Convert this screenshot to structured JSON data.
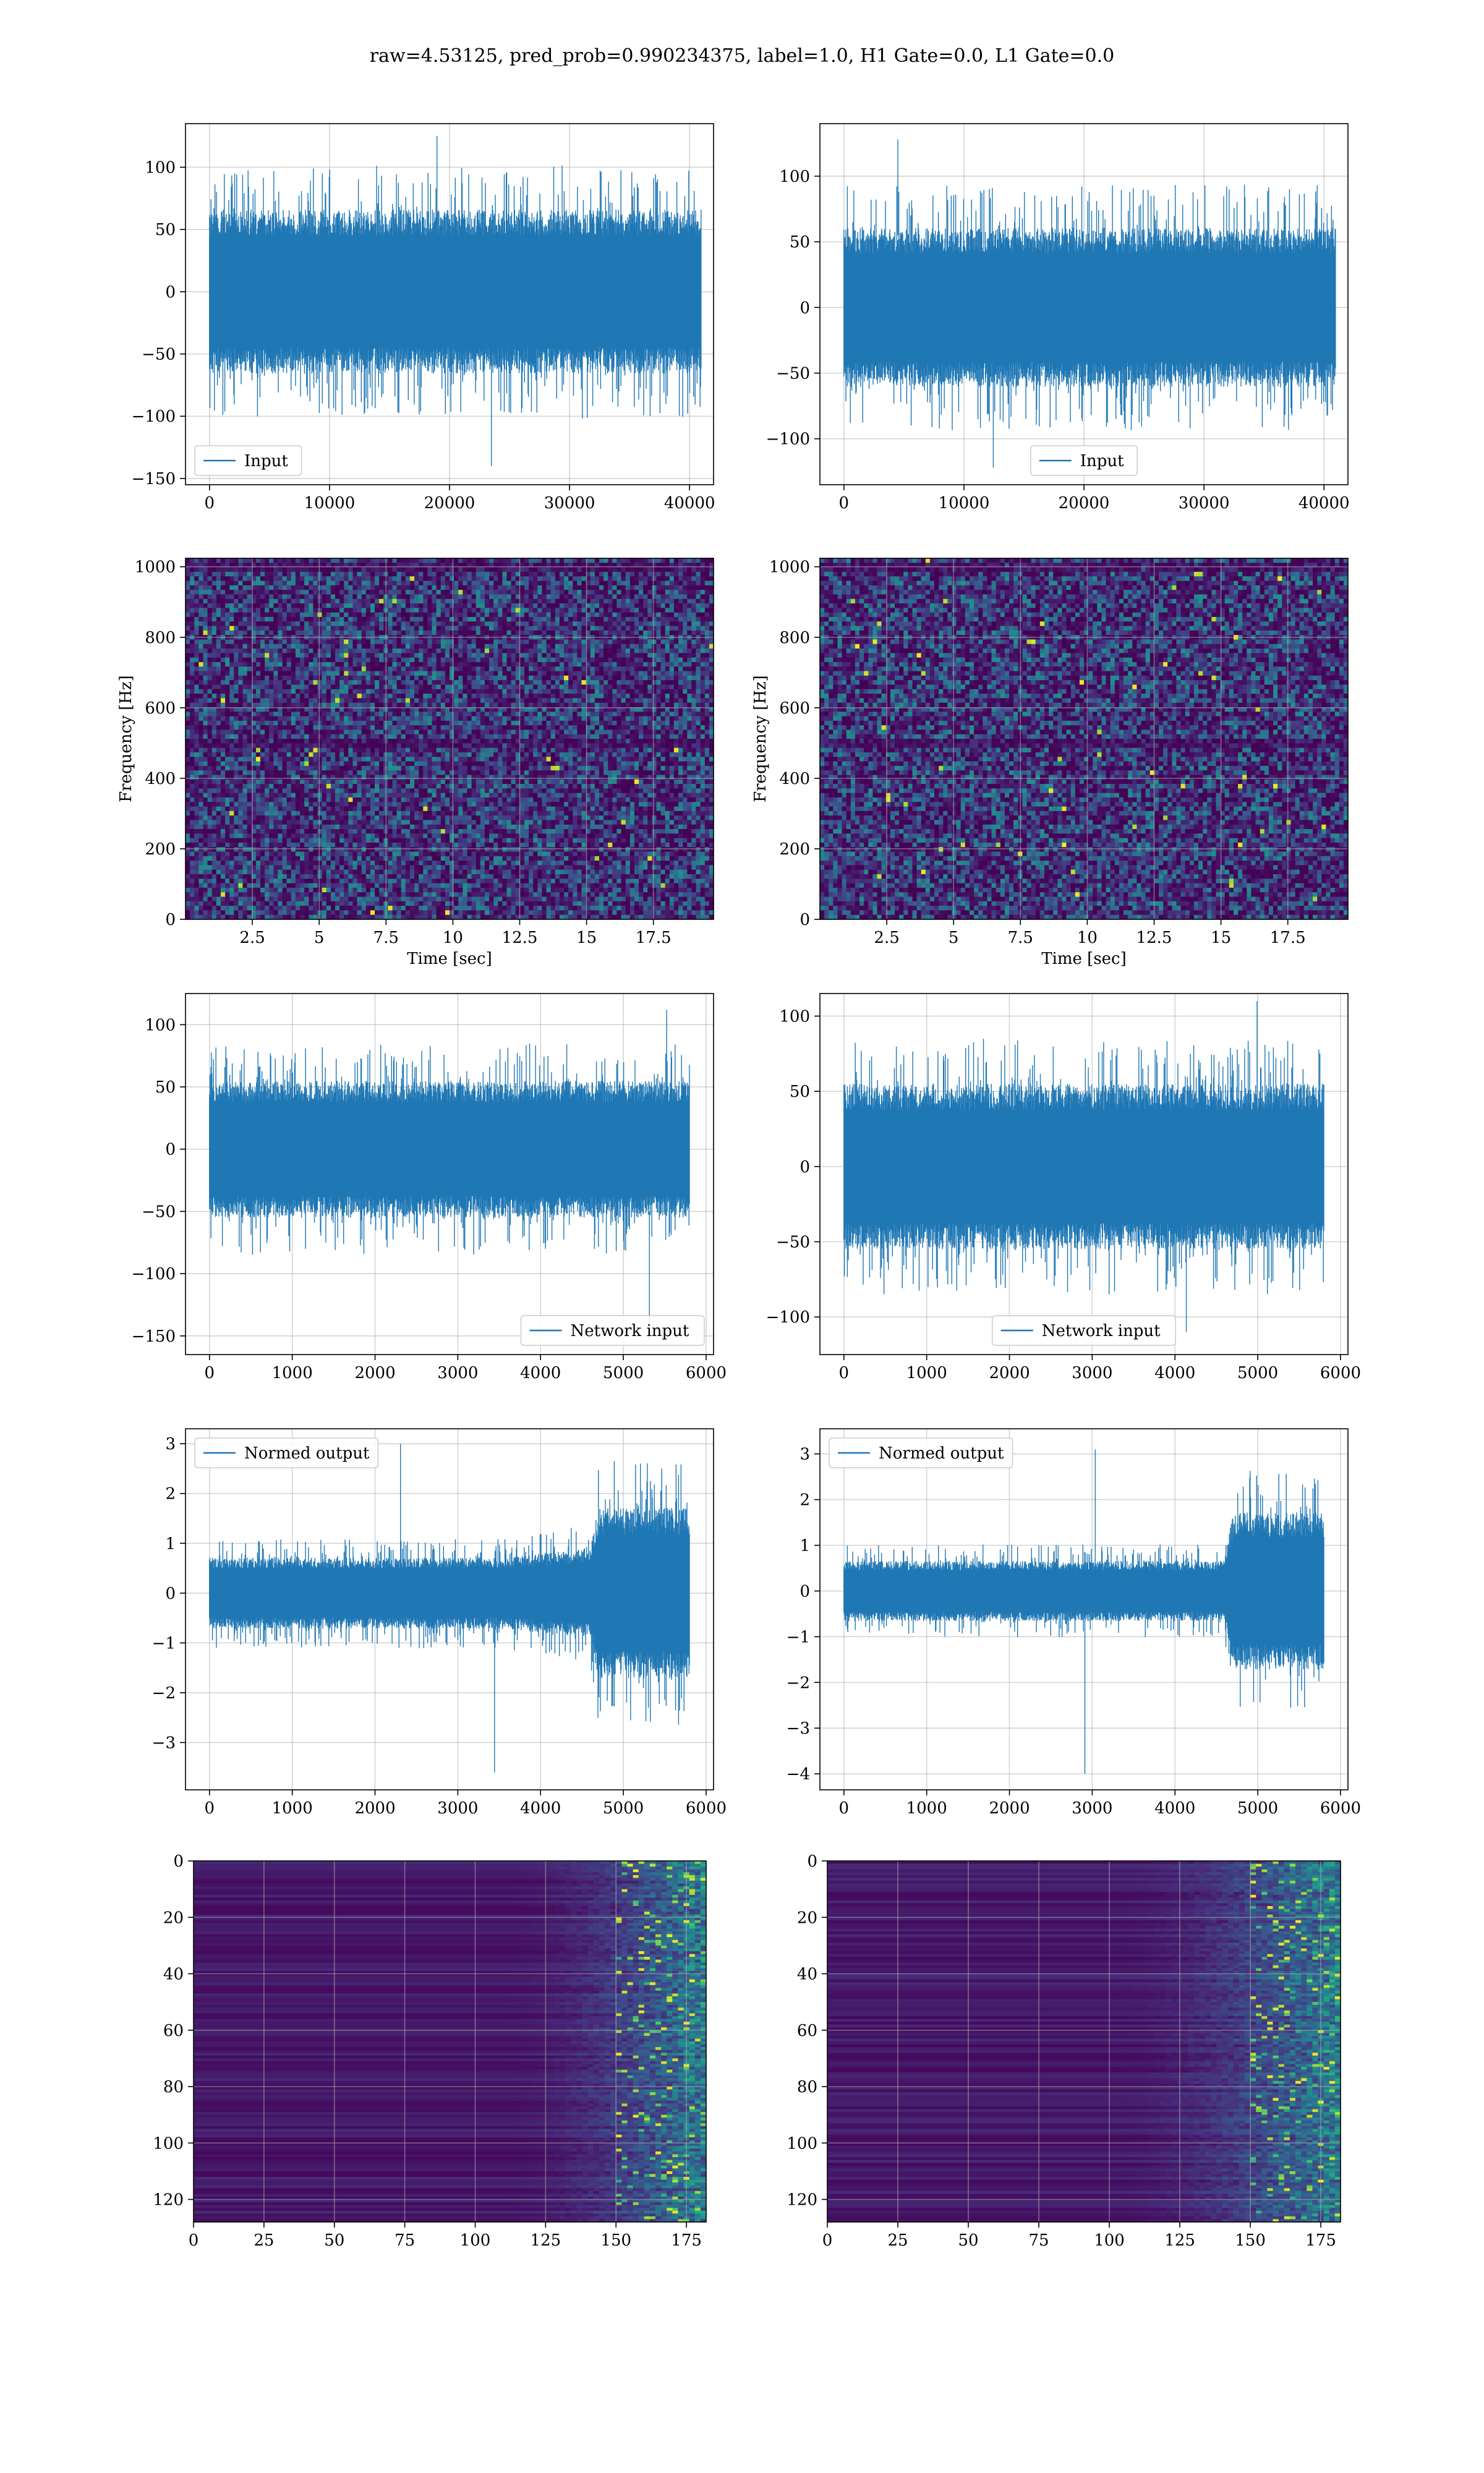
{
  "figure": {
    "suptitle": "raw=4.53125, pred_prob=0.990234375, label=1.0, H1 Gate=0.0, L1 Gate=0.0"
  },
  "colors": {
    "line": "#1f77b4",
    "viridis_low": "#440154",
    "viridis_mid": "#21918c",
    "viridis_high": "#fde725",
    "grid": "#b0b0b0"
  },
  "chart_data": [
    {
      "id": "h1-input",
      "type": "line",
      "legend": "Input",
      "legend_loc": "lower-left",
      "xlim": [
        -2000,
        42000
      ],
      "ylim": [
        -155,
        135
      ],
      "xticks": [
        0,
        10000,
        20000,
        30000,
        40000
      ],
      "yticks": [
        -150,
        -100,
        -50,
        0,
        50,
        100
      ],
      "xlabel": "",
      "ylabel": "",
      "grid": true,
      "signal": {
        "n": 40960,
        "core_amp": 60,
        "min": -140,
        "max": 125,
        "envelope": [
          {
            "x": 0,
            "mult": 1.0
          },
          {
            "x": 40959,
            "mult": 1.0
          }
        ]
      }
    },
    {
      "id": "l1-input",
      "type": "line",
      "legend": "Input",
      "legend_loc": "lower-center",
      "xlim": [
        -2000,
        42000
      ],
      "ylim": [
        -135,
        140
      ],
      "xticks": [
        0,
        10000,
        20000,
        30000,
        40000
      ],
      "yticks": [
        -100,
        -50,
        0,
        50,
        100
      ],
      "xlabel": "",
      "ylabel": "",
      "grid": true,
      "signal": {
        "n": 40960,
        "core_amp": 55,
        "min": -122,
        "max": 128,
        "envelope": [
          {
            "x": 0,
            "mult": 1.0
          },
          {
            "x": 40959,
            "mult": 1.0
          }
        ]
      }
    },
    {
      "id": "h1-spectrogram",
      "type": "heatmap",
      "xlim": [
        0,
        19.75
      ],
      "ylim": [
        0,
        1024
      ],
      "xticks": [
        2.5,
        5.0,
        7.5,
        10.0,
        12.5,
        15.0,
        17.5
      ],
      "yticks": [
        0,
        200,
        400,
        600,
        800,
        1000
      ],
      "xlabel": "Time [sec]",
      "ylabel": "Frequency [Hz]",
      "grid": true,
      "colormap": "viridis",
      "dark_bands_hz": [
        500,
        1000
      ]
    },
    {
      "id": "l1-spectrogram",
      "type": "heatmap",
      "xlim": [
        0,
        19.75
      ],
      "ylim": [
        0,
        1024
      ],
      "xticks": [
        2.5,
        5.0,
        7.5,
        10.0,
        12.5,
        15.0,
        17.5
      ],
      "yticks": [
        0,
        200,
        400,
        600,
        800,
        1000
      ],
      "xlabel": "Time [sec]",
      "ylabel": "Frequency [Hz]",
      "grid": true,
      "colormap": "viridis",
      "dark_bands_hz": [
        500,
        1000
      ]
    },
    {
      "id": "h1-network-input",
      "type": "line",
      "legend": "Network input",
      "legend_loc": "lower-right",
      "xlim": [
        -290,
        6090
      ],
      "ylim": [
        -165,
        125
      ],
      "xticks": [
        0,
        1000,
        2000,
        3000,
        4000,
        5000,
        6000
      ],
      "yticks": [
        -150,
        -100,
        -50,
        0,
        50,
        100
      ],
      "xlabel": "",
      "ylabel": "",
      "grid": true,
      "signal": {
        "n": 5800,
        "core_amp": 50,
        "min": -152,
        "max": 112,
        "envelope": [
          {
            "x": 0,
            "mult": 1.0
          },
          {
            "x": 5799,
            "mult": 1.0
          }
        ]
      }
    },
    {
      "id": "l1-network-input",
      "type": "line",
      "legend": "Network input",
      "legend_loc": "lower-center",
      "xlim": [
        -290,
        6090
      ],
      "ylim": [
        -125,
        115
      ],
      "xticks": [
        0,
        1000,
        2000,
        3000,
        4000,
        5000,
        6000
      ],
      "yticks": [
        -100,
        -50,
        0,
        50,
        100
      ],
      "xlabel": "",
      "ylabel": "",
      "grid": true,
      "signal": {
        "n": 5800,
        "core_amp": 50,
        "min": -110,
        "max": 110,
        "envelope": [
          {
            "x": 0,
            "mult": 1.0
          },
          {
            "x": 5799,
            "mult": 1.0
          }
        ]
      }
    },
    {
      "id": "h1-normed-output",
      "type": "line",
      "legend": "Normed output",
      "legend_loc": "upper-left",
      "xlim": [
        -290,
        6090
      ],
      "ylim": [
        -3.95,
        3.3
      ],
      "xticks": [
        0,
        1000,
        2000,
        3000,
        4000,
        5000,
        6000
      ],
      "yticks": [
        -3,
        -2,
        -1,
        0,
        1,
        2,
        3
      ],
      "xlabel": "",
      "ylabel": "",
      "grid": true,
      "signal": {
        "n": 5800,
        "core_amp": 0.65,
        "min": -3.6,
        "max": 3.0,
        "envelope": [
          {
            "x": 0,
            "mult": 1.0
          },
          {
            "x": 3500,
            "mult": 1.0
          },
          {
            "x": 4600,
            "mult": 1.25
          },
          {
            "x": 4700,
            "mult": 2.4
          },
          {
            "x": 5799,
            "mult": 2.4
          }
        ]
      }
    },
    {
      "id": "l1-normed-output",
      "type": "line",
      "legend": "Normed output",
      "legend_loc": "upper-left",
      "xlim": [
        -290,
        6090
      ],
      "ylim": [
        -4.35,
        3.55
      ],
      "xticks": [
        0,
        1000,
        2000,
        3000,
        4000,
        5000,
        6000
      ],
      "yticks": [
        -4,
        -3,
        -2,
        -1,
        0,
        1,
        2,
        3
      ],
      "xlabel": "",
      "ylabel": "",
      "grid": true,
      "signal": {
        "n": 5800,
        "core_amp": 0.6,
        "min": -4.0,
        "max": 3.1,
        "envelope": [
          {
            "x": 0,
            "mult": 1.0
          },
          {
            "x": 4600,
            "mult": 1.0
          },
          {
            "x": 4700,
            "mult": 2.6
          },
          {
            "x": 5799,
            "mult": 2.6
          }
        ]
      }
    },
    {
      "id": "h1-feature-map",
      "type": "heatmap",
      "xlim": [
        0,
        182
      ],
      "ylim": [
        128,
        0
      ],
      "xticks": [
        0,
        25,
        50,
        75,
        100,
        125,
        150,
        175
      ],
      "yticks": [
        0,
        20,
        40,
        60,
        80,
        100,
        120
      ],
      "xlabel": "",
      "ylabel": "",
      "grid": true,
      "colormap": "viridis",
      "activity_onset_col": 125
    },
    {
      "id": "l1-feature-map",
      "type": "heatmap",
      "xlim": [
        0,
        182
      ],
      "ylim": [
        128,
        0
      ],
      "xticks": [
        0,
        25,
        50,
        75,
        100,
        125,
        150,
        175
      ],
      "yticks": [
        0,
        20,
        40,
        60,
        80,
        100,
        120
      ],
      "xlabel": "",
      "ylabel": "",
      "grid": true,
      "colormap": "viridis",
      "activity_onset_col": 115
    }
  ]
}
